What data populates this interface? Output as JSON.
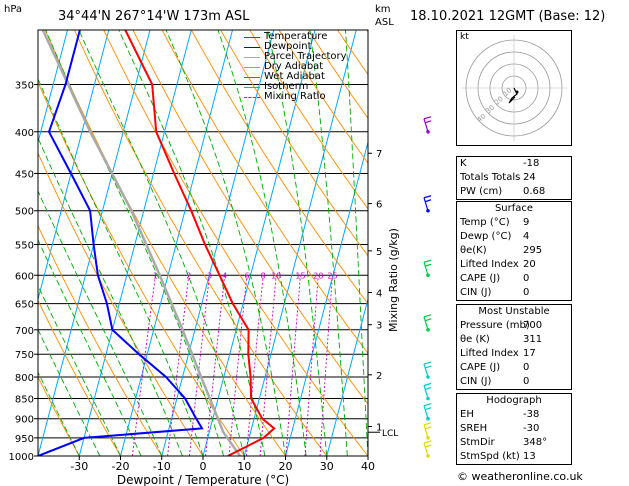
{
  "header": {
    "hpa_label": "hPa",
    "location": "34°44'N  267°14'W  173m  ASL",
    "km_label": "km",
    "asl_label": "ASL",
    "datetime": "18.10.2021  12GMT  (Base: 12)"
  },
  "colors": {
    "temperature": "#ff0000",
    "dewpoint": "#0000ff",
    "parcel": "#aaaaaa",
    "dry_adiabat": "#ff8c00",
    "wet_adiabat": "#00aa00",
    "isotherm": "#00aaff",
    "mixing_ratio": "#cc00cc",
    "wind": "#9900cc"
  },
  "legend": [
    {
      "label": "Temperature",
      "color": "#ff0000",
      "dash": false
    },
    {
      "label": "Dewpoint",
      "color": "#0000ff",
      "dash": false
    },
    {
      "label": "Parcel Trajectory",
      "color": "#aaaaaa",
      "dash": false
    },
    {
      "label": "Dry Adiabat",
      "color": "#ff8c00",
      "dash": false
    },
    {
      "label": "Wet Adiabat",
      "color": "#00aa00",
      "dash": false
    },
    {
      "label": "Isotherm",
      "color": "#00aaff",
      "dash": false
    },
    {
      "label": "Mixing Ratio",
      "color": "#cc00cc",
      "dash": true
    }
  ],
  "chart_data": {
    "type": "line",
    "xlabel": "Dewpoint / Temperature (°C)",
    "ylabel_right": "Mixing Ratio (g/kg)",
    "xlim": [
      -40,
      40
    ],
    "ylim_hpa": [
      1000,
      300
    ],
    "x_ticks": [
      -30,
      -20,
      -10,
      0,
      10,
      20,
      30,
      40
    ],
    "pressure_levels": [
      350,
      400,
      450,
      500,
      550,
      600,
      650,
      700,
      750,
      800,
      850,
      900,
      950,
      1000
    ],
    "km_ticks": [
      {
        "label": "1",
        "p": 920
      },
      {
        "label": "2",
        "p": 795
      },
      {
        "label": "3",
        "p": 690
      },
      {
        "label": "4",
        "p": 630
      },
      {
        "label": "5",
        "p": 560
      },
      {
        "label": "6",
        "p": 490
      },
      {
        "label": "7",
        "p": 425
      }
    ],
    "lcl": {
      "label": "LCL",
      "p": 935
    },
    "mixing_ratio_labels": [
      "1",
      "2",
      "3",
      "4",
      "6",
      "8",
      "10",
      "15",
      "20",
      "25"
    ],
    "mixing_ratio_values": [
      1,
      2,
      3,
      4,
      6,
      8,
      10,
      15,
      20,
      25
    ],
    "temperature": [
      {
        "p": 1000,
        "t": 6
      },
      {
        "p": 950,
        "t": 13.5
      },
      {
        "p": 925,
        "t": 15.5
      },
      {
        "p": 900,
        "t": 12
      },
      {
        "p": 850,
        "t": 8
      },
      {
        "p": 800,
        "t": 6.5
      },
      {
        "p": 750,
        "t": 4.5
      },
      {
        "p": 700,
        "t": 3
      },
      {
        "p": 650,
        "t": -2.5
      },
      {
        "p": 600,
        "t": -7.5
      },
      {
        "p": 550,
        "t": -13
      },
      {
        "p": 500,
        "t": -18.5
      },
      {
        "p": 450,
        "t": -25
      },
      {
        "p": 400,
        "t": -32
      },
      {
        "p": 350,
        "t": -36
      },
      {
        "p": 300,
        "t": -46
      }
    ],
    "dewpoint": [
      {
        "p": 1000,
        "t": -40
      },
      {
        "p": 950,
        "t": -30
      },
      {
        "p": 925,
        "t": -2
      },
      {
        "p": 900,
        "t": -4
      },
      {
        "p": 850,
        "t": -8
      },
      {
        "p": 800,
        "t": -14
      },
      {
        "p": 750,
        "t": -22
      },
      {
        "p": 700,
        "t": -30
      },
      {
        "p": 650,
        "t": -33
      },
      {
        "p": 600,
        "t": -37
      },
      {
        "p": 550,
        "t": -40
      },
      {
        "p": 500,
        "t": -43
      },
      {
        "p": 450,
        "t": -50
      },
      {
        "p": 400,
        "t": -58
      },
      {
        "p": 350,
        "t": -57
      },
      {
        "p": 300,
        "t": -57
      }
    ],
    "parcel": [
      {
        "p": 1000,
        "t": 9
      },
      {
        "p": 935,
        "t": 3.4
      },
      {
        "p": 850,
        "t": -2
      },
      {
        "p": 800,
        "t": -5.5
      },
      {
        "p": 700,
        "t": -13
      },
      {
        "p": 600,
        "t": -22
      },
      {
        "p": 500,
        "t": -33
      },
      {
        "p": 400,
        "t": -48
      },
      {
        "p": 300,
        "t": -66
      }
    ]
  },
  "indices": {
    "top": [
      {
        "label": "K",
        "value": "-18"
      },
      {
        "label": "Totals Totals",
        "value": "24"
      },
      {
        "label": "PW (cm)",
        "value": "0.68"
      }
    ],
    "surface": {
      "title": "Surface",
      "rows": [
        {
          "label": "Temp (°C)",
          "value": "9"
        },
        {
          "label": "Dewp (°C)",
          "value": "4"
        },
        {
          "label": "θe(K)",
          "value": "295"
        },
        {
          "label": "Lifted Index",
          "value": "20"
        },
        {
          "label": "CAPE (J)",
          "value": "0"
        },
        {
          "label": "CIN (J)",
          "value": "0"
        }
      ]
    },
    "most_unstable": {
      "title": "Most Unstable",
      "rows": [
        {
          "label": "Pressure (mb)",
          "value": "700"
        },
        {
          "label": "θe (K)",
          "value": "311"
        },
        {
          "label": "Lifted Index",
          "value": "17"
        },
        {
          "label": "CAPE (J)",
          "value": "0"
        },
        {
          "label": "CIN (J)",
          "value": "0"
        }
      ]
    },
    "hodograph": {
      "title": "Hodograph",
      "rows": [
        {
          "label": "EH",
          "value": "-38"
        },
        {
          "label": "SREH",
          "value": "-30"
        },
        {
          "label": "StmDir",
          "value": "348°"
        },
        {
          "label": "StmSpd (kt)",
          "value": "13"
        }
      ]
    }
  },
  "hodograph_panel": {
    "unit_label": "kt",
    "ring_labels": [
      "10",
      "20",
      "30",
      "40"
    ]
  },
  "wind_barbs": [
    {
      "p": 1000,
      "color": "#dddd00"
    },
    {
      "p": 950,
      "color": "#dddd00"
    },
    {
      "p": 900,
      "color": "#00cccc"
    },
    {
      "p": 850,
      "color": "#00cccc"
    },
    {
      "p": 800,
      "color": "#00cccc"
    },
    {
      "p": 700,
      "color": "#00cc44"
    },
    {
      "p": 600,
      "color": "#00cc44"
    },
    {
      "p": 500,
      "color": "#0000ff"
    },
    {
      "p": 400,
      "color": "#9900cc"
    }
  ],
  "copyright": "© weatheronline.co.uk"
}
